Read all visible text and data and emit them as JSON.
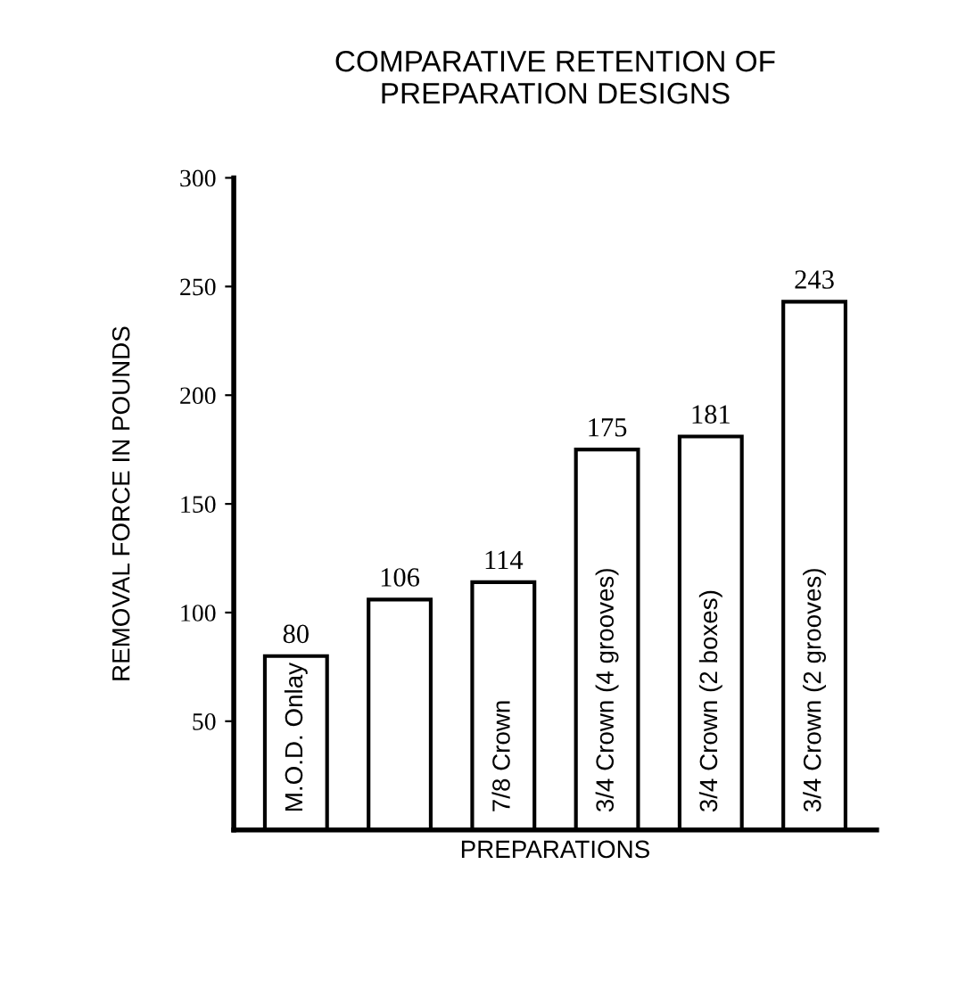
{
  "chart_data": {
    "type": "bar",
    "title": "COMPARATIVE RETENTION OF\nPREPARATION DESIGNS",
    "xlabel": "PREPARATIONS",
    "ylabel": "REMOVAL FORCE IN POUNDS",
    "categories": [
      "M.O.D. Onlay",
      null,
      "7/8 Crown",
      "3/4 Crown (4 grooves)",
      "3/4 Crown (2 boxes)",
      "3/4 Crown (2 grooves)"
    ],
    "values": [
      80,
      106,
      114,
      175,
      181,
      243
    ],
    "colors": [
      "#ffffff",
      "#ffffff",
      "#ffffff",
      "#ffffff",
      "#ffffff",
      "#ffffff"
    ],
    "ylim": [
      0,
      300
    ],
    "yticks": [
      50,
      100,
      150,
      200,
      250,
      300
    ],
    "data_labels": true,
    "grid": false
  }
}
